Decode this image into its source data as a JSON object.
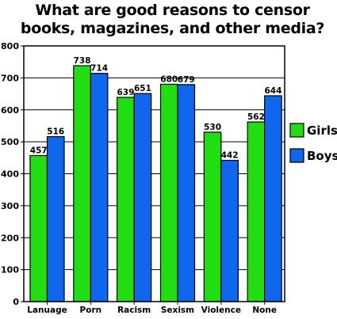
{
  "chart_data": {
    "type": "bar",
    "title_lines": [
      "What are good reasons to censor",
      "books, magazines, and other media?"
    ],
    "categories": [
      "Lanuage",
      "Porn",
      "Racism",
      "Sexism",
      "Violence",
      "None"
    ],
    "series": [
      {
        "name": "Girls",
        "values": [
          457,
          738,
          639,
          680,
          530,
          562
        ],
        "color": "#22dd11"
      },
      {
        "name": "Boys",
        "values": [
          516,
          714,
          651,
          679,
          442,
          644
        ],
        "color": "#1166ee"
      }
    ],
    "ylim": [
      0,
      800
    ],
    "yticks": [
      0,
      100,
      200,
      300,
      400,
      500,
      600,
      700,
      800
    ],
    "grid": true,
    "legend": "right"
  }
}
